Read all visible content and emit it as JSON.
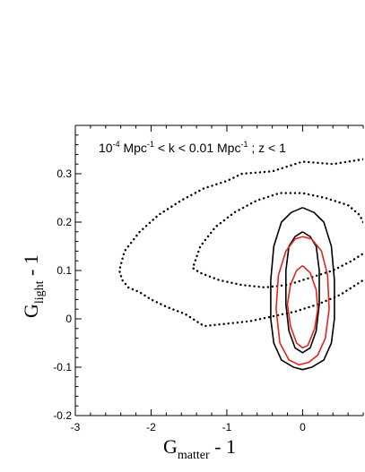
{
  "chart_data": {
    "type": "line",
    "annotation": {
      "lead": "10",
      "exp1": "-4",
      "mid": " Mpc",
      "exp2": "-1",
      "mid2": " < k < 0.01 Mpc",
      "exp3": "-1",
      "tail": " ; z < 1"
    },
    "xlabel": {
      "main": "G",
      "sub": "matter",
      "tail": " - 1"
    },
    "ylabel": {
      "main": "G",
      "sub": "light",
      "tail": " - 1"
    },
    "xlim": [
      -3,
      0.8
    ],
    "ylim": [
      -0.2,
      0.4
    ],
    "x_ticks": [
      -3,
      -2,
      -1,
      0
    ],
    "x_tick_labels": [
      "-3",
      "-2",
      "-1",
      "0"
    ],
    "y_ticks": [
      -0.2,
      -0.1,
      0,
      0.1,
      0.2,
      0.3
    ],
    "y_tick_labels": [
      "-0.2",
      "-0.1",
      "0",
      "0.1",
      "0.2",
      "0.3"
    ],
    "colors": {
      "black": "#000000",
      "red": "#e8221c"
    },
    "series": [
      {
        "style": "dotted",
        "color": "#000000",
        "points": [
          [
            0.8,
            0.33
          ],
          [
            0.4,
            0.32
          ],
          [
            0.0,
            0.325
          ],
          [
            -0.4,
            0.305
          ],
          [
            -0.8,
            0.3
          ],
          [
            -1.0,
            0.285
          ],
          [
            -1.3,
            0.27
          ],
          [
            -1.6,
            0.245
          ],
          [
            -1.9,
            0.215
          ],
          [
            -2.15,
            0.18
          ],
          [
            -2.35,
            0.14
          ],
          [
            -2.42,
            0.1
          ],
          [
            -2.38,
            0.08
          ],
          [
            -2.3,
            0.065
          ],
          [
            -2.15,
            0.055
          ],
          [
            -2.0,
            0.04
          ],
          [
            -1.8,
            0.025
          ],
          [
            -1.55,
            0.01
          ],
          [
            -1.3,
            -0.015
          ],
          [
            -1.0,
            -0.01
          ],
          [
            -0.7,
            -0.005
          ],
          [
            -0.4,
            0.005
          ],
          [
            -0.1,
            0.015
          ],
          [
            0.2,
            0.03
          ],
          [
            0.5,
            0.05
          ],
          [
            0.8,
            0.08
          ]
        ]
      },
      {
        "style": "dotted",
        "color": "#000000",
        "points": [
          [
            0.8,
            0.2
          ],
          [
            0.75,
            0.215
          ],
          [
            0.6,
            0.235
          ],
          [
            0.3,
            0.25
          ],
          [
            0.0,
            0.26
          ],
          [
            -0.3,
            0.26
          ],
          [
            -0.6,
            0.245
          ],
          [
            -0.9,
            0.22
          ],
          [
            -1.15,
            0.19
          ],
          [
            -1.35,
            0.15
          ],
          [
            -1.45,
            0.105
          ],
          [
            -1.35,
            0.095
          ],
          [
            -1.1,
            0.08
          ],
          [
            -0.8,
            0.07
          ],
          [
            -0.5,
            0.065
          ],
          [
            -0.2,
            0.07
          ],
          [
            0.1,
            0.085
          ],
          [
            0.4,
            0.1
          ],
          [
            0.65,
            0.12
          ],
          [
            0.8,
            0.135
          ]
        ]
      },
      {
        "style": "solid",
        "color": "#000000",
        "points": [
          [
            0.0,
            0.23
          ],
          [
            0.15,
            0.22
          ],
          [
            0.28,
            0.2
          ],
          [
            0.38,
            0.15
          ],
          [
            0.42,
            0.08
          ],
          [
            0.42,
            0.0
          ],
          [
            0.38,
            -0.05
          ],
          [
            0.28,
            -0.085
          ],
          [
            0.12,
            -0.1
          ],
          [
            0.0,
            -0.105
          ],
          [
            -0.12,
            -0.1
          ],
          [
            -0.28,
            -0.085
          ],
          [
            -0.38,
            -0.05
          ],
          [
            -0.42,
            0.0
          ],
          [
            -0.42,
            0.08
          ],
          [
            -0.38,
            0.15
          ],
          [
            -0.28,
            0.2
          ],
          [
            -0.15,
            0.22
          ],
          [
            0.0,
            0.23
          ]
        ]
      },
      {
        "style": "solid",
        "color": "#000000",
        "points": [
          [
            0.0,
            0.18
          ],
          [
            0.1,
            0.17
          ],
          [
            0.18,
            0.15
          ],
          [
            0.22,
            0.1
          ],
          [
            0.22,
            0.03
          ],
          [
            0.18,
            -0.025
          ],
          [
            0.1,
            -0.06
          ],
          [
            0.0,
            -0.07
          ],
          [
            -0.1,
            -0.06
          ],
          [
            -0.18,
            -0.025
          ],
          [
            -0.22,
            0.03
          ],
          [
            -0.22,
            0.1
          ],
          [
            -0.18,
            0.15
          ],
          [
            -0.1,
            0.17
          ],
          [
            0.0,
            0.18
          ]
        ]
      },
      {
        "style": "solid",
        "color": "#e8221c",
        "points": [
          [
            0.0,
            0.17
          ],
          [
            0.12,
            0.165
          ],
          [
            0.25,
            0.14
          ],
          [
            0.33,
            0.09
          ],
          [
            0.35,
            0.02
          ],
          [
            0.3,
            -0.04
          ],
          [
            0.2,
            -0.075
          ],
          [
            0.08,
            -0.09
          ],
          [
            -0.05,
            -0.095
          ],
          [
            -0.18,
            -0.085
          ],
          [
            -0.3,
            -0.05
          ],
          [
            -0.35,
            0.02
          ],
          [
            -0.32,
            0.09
          ],
          [
            -0.22,
            0.14
          ],
          [
            -0.1,
            0.165
          ],
          [
            0.0,
            0.17
          ]
        ]
      },
      {
        "style": "solid",
        "color": "#e8221c",
        "points": [
          [
            0.0,
            0.11
          ],
          [
            0.1,
            0.095
          ],
          [
            0.18,
            0.06
          ],
          [
            0.2,
            0.02
          ],
          [
            0.16,
            -0.02
          ],
          [
            0.07,
            -0.055
          ],
          [
            0.0,
            -0.06
          ],
          [
            -0.08,
            -0.05
          ],
          [
            -0.16,
            -0.015
          ],
          [
            -0.2,
            0.03
          ],
          [
            -0.16,
            0.07
          ],
          [
            -0.08,
            0.1
          ],
          [
            0.0,
            0.11
          ]
        ]
      }
    ]
  }
}
